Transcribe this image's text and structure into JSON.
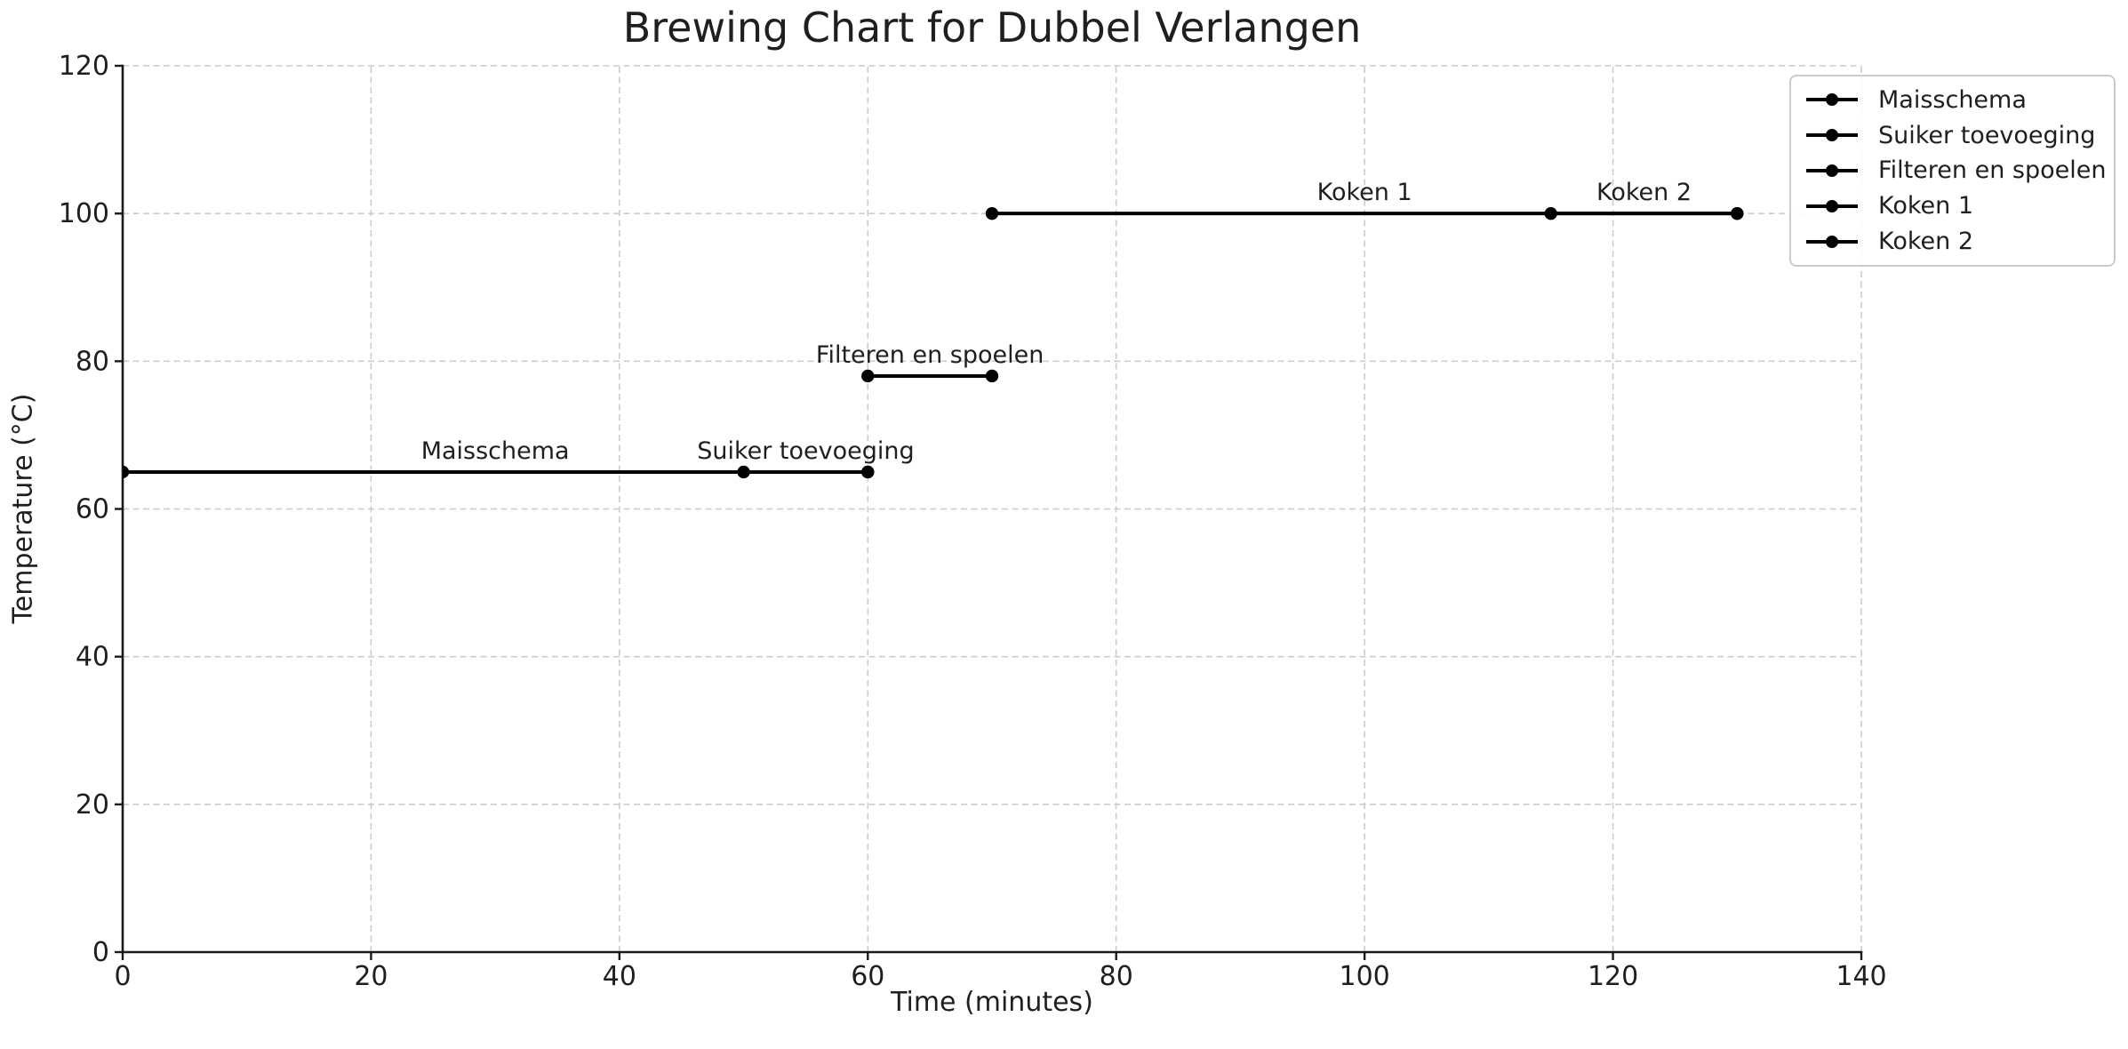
{
  "figure": {
    "background": "#ffffff",
    "text_color": "#1f1f1f",
    "line_color": "#000000",
    "grid_color": "#cccccc",
    "spine_color": "#1a1a1a",
    "legend_border_color": "#cbcbcb"
  },
  "chart_data": {
    "type": "line",
    "title": "Brewing Chart for Dubbel Verlangen",
    "xlabel": "Time (minutes)",
    "ylabel": "Temperature (°C)",
    "xlim": [
      0,
      140
    ],
    "ylim": [
      0,
      120
    ],
    "xticks": [
      0,
      20,
      40,
      60,
      80,
      100,
      120,
      140
    ],
    "yticks": [
      0,
      20,
      40,
      60,
      80,
      100,
      120
    ],
    "grid": {
      "visible": true,
      "style": "dashed"
    },
    "legend": {
      "position": "upper right",
      "entries": [
        "Maisschema",
        "Suiker toevoeging",
        "Filteren en spoelen",
        "Koken 1",
        "Koken 2"
      ]
    },
    "series": [
      {
        "name": "Maisschema",
        "color": "#000000",
        "marker": "circle",
        "points": [
          [
            0,
            65
          ],
          [
            60,
            65
          ]
        ],
        "annotation": {
          "text": "Maisschema",
          "x": 30,
          "y": 65
        }
      },
      {
        "name": "Suiker toevoeging",
        "color": "#000000",
        "marker": "circle",
        "points": [
          [
            50,
            65
          ],
          [
            60,
            65
          ]
        ],
        "annotation": {
          "text": "Suiker toevoeging",
          "x": 55,
          "y": 65
        }
      },
      {
        "name": "Filteren en spoelen",
        "color": "#000000",
        "marker": "circle",
        "points": [
          [
            60,
            78
          ],
          [
            70,
            78
          ]
        ],
        "annotation": {
          "text": "Filteren en spoelen",
          "x": 65,
          "y": 78
        }
      },
      {
        "name": "Koken 1",
        "color": "#000000",
        "marker": "circle",
        "points": [
          [
            70,
            100
          ],
          [
            130,
            100
          ]
        ],
        "annotation": {
          "text": "Koken 1",
          "x": 100,
          "y": 100
        }
      },
      {
        "name": "Koken 2",
        "color": "#000000",
        "marker": "circle",
        "points": [
          [
            115,
            100
          ],
          [
            130,
            100
          ]
        ],
        "annotation": {
          "text": "Koken 2",
          "x": 122.5,
          "y": 100
        }
      }
    ]
  }
}
